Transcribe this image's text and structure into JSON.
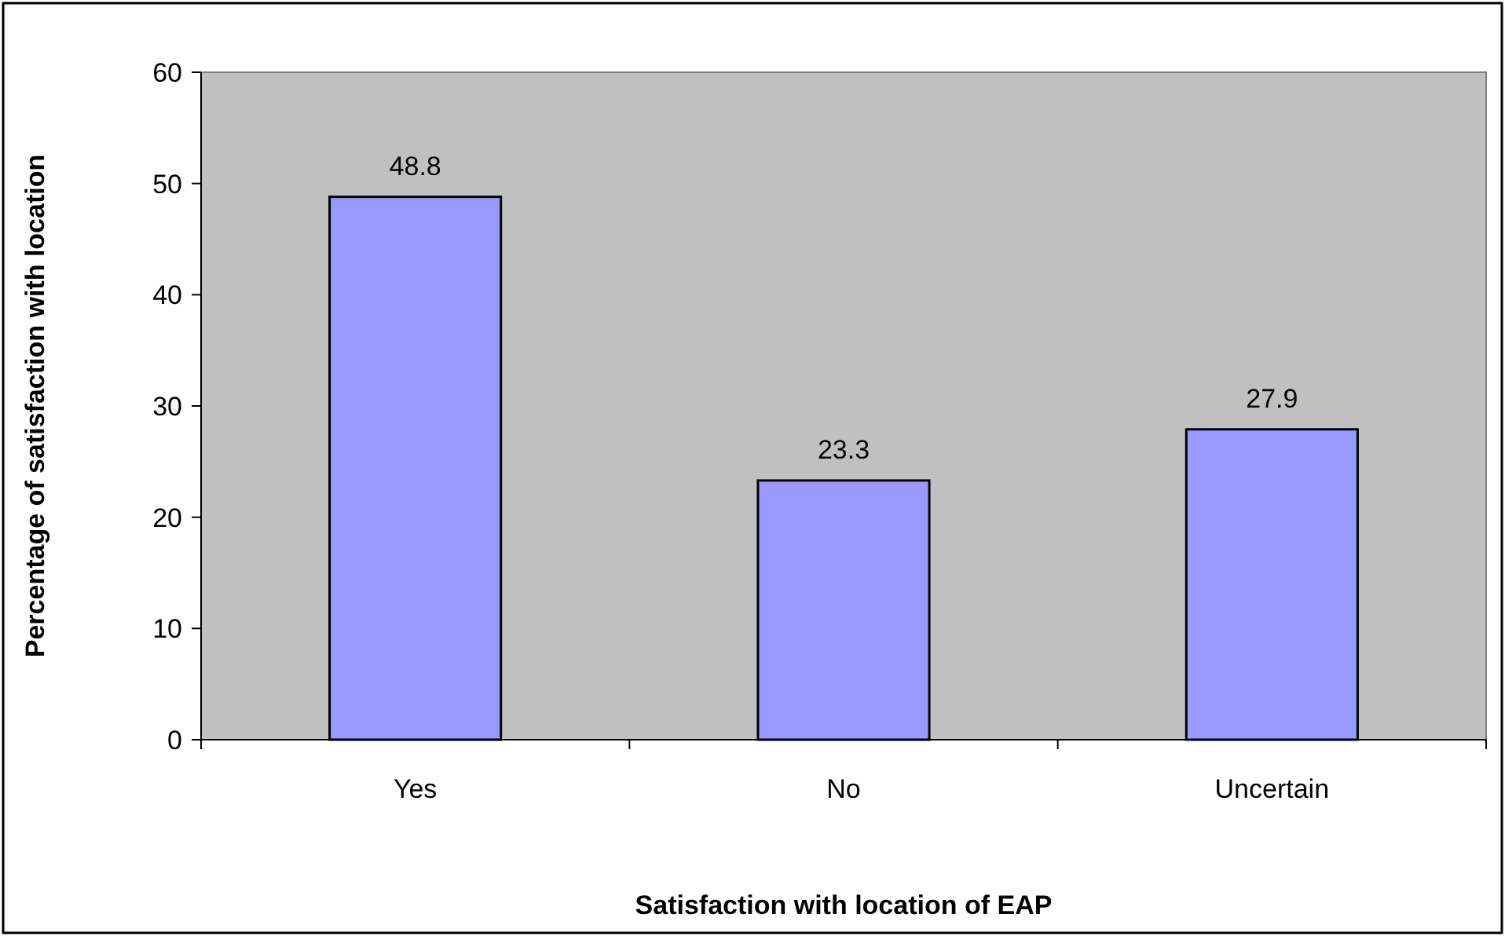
{
  "chart_data": {
    "type": "bar",
    "xlabel": "Satisfaction with location of EAP",
    "ylabel": "Percentage of satisfaction with location",
    "categories": [
      "Yes",
      "No",
      "Uncertain"
    ],
    "values": [
      48.8,
      23.3,
      27.9
    ],
    "color": "#9999ff",
    "ylim": [
      0,
      60
    ],
    "yticks": [
      0,
      10,
      20,
      30,
      40,
      50,
      60
    ],
    "data_labels": true
  }
}
